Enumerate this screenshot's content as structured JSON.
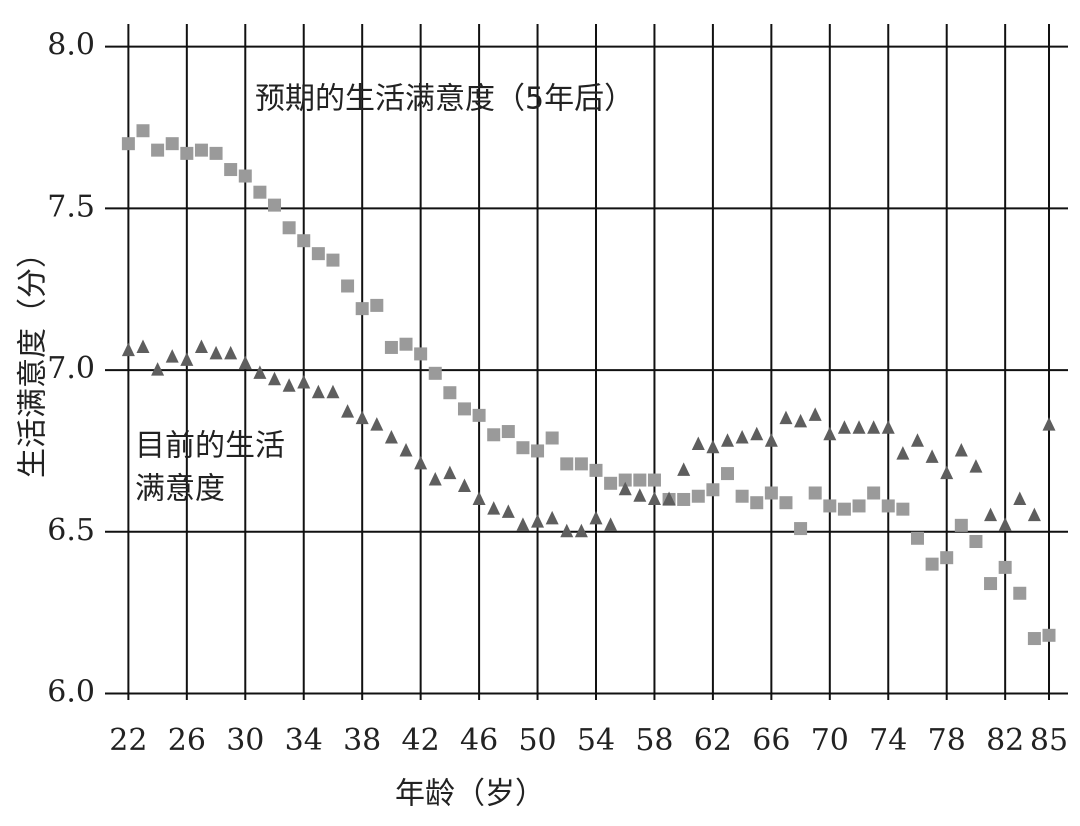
{
  "chart_data": {
    "type": "scatter",
    "xlabel": "年龄（岁）",
    "ylabel": "生活满意度（分）",
    "annotations": [
      "预期的生活满意度（5年后）",
      "目前的生活",
      "满意度"
    ],
    "x": [
      22,
      23,
      24,
      25,
      26,
      27,
      28,
      29,
      30,
      31,
      32,
      33,
      34,
      35,
      36,
      37,
      38,
      39,
      40,
      41,
      42,
      43,
      44,
      45,
      46,
      47,
      48,
      49,
      50,
      51,
      52,
      53,
      54,
      55,
      56,
      57,
      58,
      59,
      60,
      61,
      62,
      63,
      64,
      65,
      66,
      67,
      68,
      69,
      70,
      71,
      72,
      73,
      74,
      75,
      76,
      77,
      78,
      79,
      80,
      81,
      82,
      83,
      84,
      85
    ],
    "series": [
      {
        "marker": "square",
        "color": "#9a9a9a",
        "values": [
          7.7,
          7.74,
          7.68,
          7.7,
          7.67,
          7.68,
          7.67,
          7.62,
          7.6,
          7.55,
          7.51,
          7.44,
          7.4,
          7.36,
          7.34,
          7.26,
          7.19,
          7.2,
          7.07,
          7.08,
          7.05,
          6.99,
          6.93,
          6.88,
          6.86,
          6.8,
          6.81,
          6.76,
          6.75,
          6.79,
          6.71,
          6.71,
          6.69,
          6.65,
          6.66,
          6.66,
          6.66,
          6.6,
          6.6,
          6.61,
          6.63,
          6.68,
          6.61,
          6.59,
          6.62,
          6.59,
          6.51,
          6.62,
          6.58,
          6.57,
          6.58,
          6.62,
          6.58,
          6.57,
          6.48,
          6.4,
          6.42,
          6.52,
          6.47,
          6.34,
          6.39,
          6.31,
          6.17,
          6.18
        ]
      },
      {
        "marker": "triangle",
        "color": "#5e5e5e",
        "values": [
          7.06,
          7.07,
          7.0,
          7.04,
          7.03,
          7.07,
          7.05,
          7.05,
          7.02,
          6.99,
          6.97,
          6.95,
          6.96,
          6.93,
          6.93,
          6.87,
          6.85,
          6.83,
          6.79,
          6.75,
          6.71,
          6.66,
          6.68,
          6.64,
          6.6,
          6.57,
          6.56,
          6.52,
          6.53,
          6.54,
          6.5,
          6.5,
          6.54,
          6.52,
          6.63,
          6.61,
          6.6,
          6.6,
          6.69,
          6.77,
          6.76,
          6.78,
          6.79,
          6.8,
          6.78,
          6.85,
          6.84,
          6.86,
          6.8,
          6.82,
          6.82,
          6.82,
          6.82,
          6.74,
          6.78,
          6.73,
          6.68,
          6.75,
          6.7,
          6.55,
          6.52,
          6.6,
          6.55,
          6.83
        ]
      }
    ],
    "xlim": [
      20.4,
      86.3
    ],
    "xticks": [
      22,
      26,
      30,
      34,
      38,
      42,
      46,
      50,
      54,
      58,
      62,
      66,
      70,
      74,
      78,
      82,
      85
    ],
    "ylim": [
      5.98,
      8.07
    ],
    "yticks": [
      {
        "value": 6,
        "label": "6.0"
      },
      {
        "value": 6.5,
        "label": "6.5"
      },
      {
        "value": 7,
        "label": "7.0"
      },
      {
        "value": 7.5,
        "label": "7.5"
      },
      {
        "value": 8,
        "label": "8.0"
      }
    ],
    "grid": true
  }
}
